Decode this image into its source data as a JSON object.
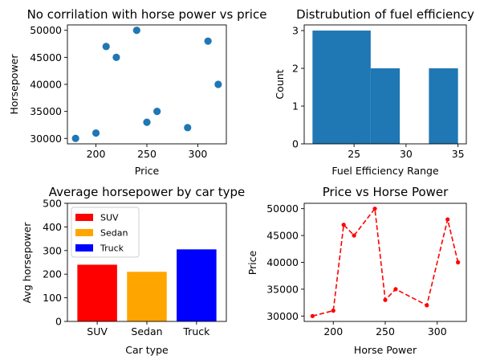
{
  "chart_data": [
    {
      "type": "scatter",
      "title": "No corrilation with horse power vs price",
      "xlabel": "Price",
      "ylabel": "Horsepower",
      "xlim": [
        172,
        328
      ],
      "ylim": [
        29000,
        51000
      ],
      "xticks": [
        200,
        250,
        300
      ],
      "yticks": [
        30000,
        35000,
        40000,
        45000,
        50000
      ],
      "color": "#1f77b4",
      "points": [
        {
          "x": 180,
          "y": 30000
        },
        {
          "x": 200,
          "y": 31000
        },
        {
          "x": 210,
          "y": 47000
        },
        {
          "x": 220,
          "y": 45000
        },
        {
          "x": 240,
          "y": 50000
        },
        {
          "x": 250,
          "y": 33000
        },
        {
          "x": 260,
          "y": 35000
        },
        {
          "x": 290,
          "y": 32000
        },
        {
          "x": 310,
          "y": 48000
        },
        {
          "x": 320,
          "y": 40000
        }
      ]
    },
    {
      "type": "bar",
      "title": "Distrubution of fuel efficiency",
      "xlabel": "Fuel Efficiency Range",
      "ylabel": "Count",
      "xlim": [
        20.2,
        35.8
      ],
      "ylim": [
        0,
        3.15
      ],
      "xticks": [
        25,
        30,
        35
      ],
      "yticks": [
        0,
        1,
        2,
        3
      ],
      "color": "#1f77b4",
      "bins": [
        {
          "from": 21,
          "to": 26.6,
          "count": 3
        },
        {
          "from": 26.6,
          "to": 29.4,
          "count": 2
        },
        {
          "from": 29.4,
          "to": 32.2,
          "count": 0
        },
        {
          "from": 32.2,
          "to": 35,
          "count": 2
        }
      ]
    },
    {
      "type": "bar",
      "title": "Average horsepower by car type",
      "xlabel": "Car type",
      "ylabel": "Avg horsepower",
      "ylim": [
        0,
        500
      ],
      "yticks": [
        0,
        100,
        200,
        300,
        400,
        500
      ],
      "categories": [
        "SUV",
        "Sedan",
        "Truck"
      ],
      "values": [
        240,
        210,
        305
      ],
      "colors": [
        "#ff0000",
        "#ffa500",
        "#0000ff"
      ],
      "legend_position": "top-left"
    },
    {
      "type": "line",
      "title": "Price vs Horse Power",
      "xlabel": "Horse Power",
      "ylabel": "Price",
      "xlim": [
        172,
        328
      ],
      "ylim": [
        29000,
        51000
      ],
      "xticks": [
        200,
        250,
        300
      ],
      "yticks": [
        30000,
        35000,
        40000,
        45000,
        50000
      ],
      "color": "#ff0000",
      "line_style": "dashed",
      "points": [
        {
          "x": 180,
          "y": 30000
        },
        {
          "x": 200,
          "y": 31000
        },
        {
          "x": 210,
          "y": 47000
        },
        {
          "x": 220,
          "y": 45000
        },
        {
          "x": 240,
          "y": 50000
        },
        {
          "x": 250,
          "y": 33000
        },
        {
          "x": 260,
          "y": 35000
        },
        {
          "x": 290,
          "y": 32000
        },
        {
          "x": 310,
          "y": 48000
        },
        {
          "x": 320,
          "y": 40000
        }
      ]
    }
  ]
}
